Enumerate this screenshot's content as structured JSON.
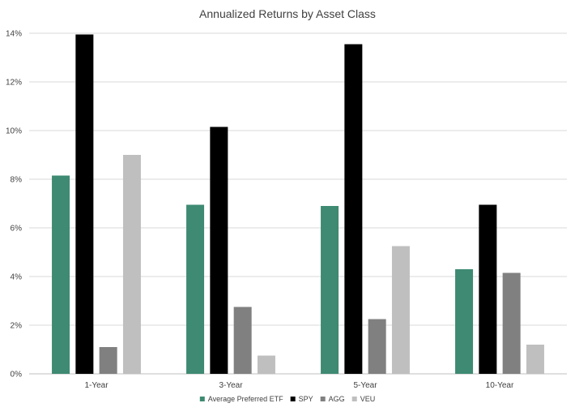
{
  "chart_data": {
    "type": "bar",
    "title": "Annualized Returns by Asset Class",
    "xlabel": "",
    "ylabel": "",
    "categories": [
      "1-Year",
      "3-Year",
      "5-Year",
      "10-Year"
    ],
    "series": [
      {
        "name": "Average Preferred ETF",
        "color": "#3e8a72",
        "values": [
          8.15,
          6.95,
          6.9,
          4.3
        ]
      },
      {
        "name": "SPY",
        "color": "#000000",
        "values": [
          13.95,
          10.15,
          13.55,
          6.95
        ]
      },
      {
        "name": "AGG",
        "color": "#808080",
        "values": [
          1.1,
          2.75,
          2.25,
          4.15
        ]
      },
      {
        "name": "VEU",
        "color": "#bfbfbf",
        "values": [
          9.0,
          0.75,
          5.25,
          1.2
        ]
      }
    ],
    "ylim": [
      0,
      14
    ],
    "yticks": [
      0,
      2,
      4,
      6,
      8,
      10,
      12,
      14
    ],
    "ytick_format": "%",
    "grid": true,
    "legend_position": "bottom",
    "gridline_color": "#d9d9d9",
    "axis_color": "#bfbfbf"
  }
}
